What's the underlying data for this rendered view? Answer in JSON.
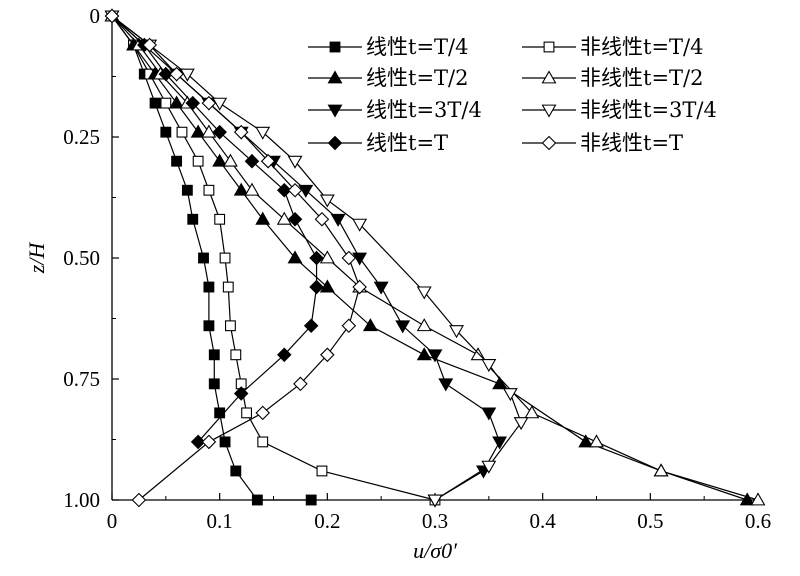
{
  "chart_data": {
    "type": "line",
    "xlabel": "u/σ0′",
    "ylabel": "z/H",
    "xlim": [
      0,
      0.6
    ],
    "ylim": [
      0,
      1.0
    ],
    "y_inverted": true,
    "xticks": [
      "0",
      "0.1",
      "0.2",
      "0.3",
      "0.4",
      "0.5",
      "0.6"
    ],
    "yticks": [
      "0",
      "0.25",
      "0.50",
      "0.75",
      "1.00"
    ],
    "legend_position": "top-right",
    "series": [
      {
        "name": "线性t=T/4",
        "marker": "square",
        "filled": true,
        "x": [
          0,
          0.02,
          0.03,
          0.04,
          0.05,
          0.06,
          0.07,
          0.075,
          0.085,
          0.09,
          0.09,
          0.095,
          0.095,
          0.1,
          0.105,
          0.115,
          0.135,
          0.185
        ],
        "y": [
          0,
          0.06,
          0.12,
          0.18,
          0.24,
          0.3,
          0.36,
          0.42,
          0.5,
          0.56,
          0.64,
          0.7,
          0.76,
          0.82,
          0.88,
          0.94,
          1.0,
          1.0
        ]
      },
      {
        "name": "非线性t=T/4",
        "marker": "square",
        "filled": false,
        "x": [
          0,
          0.02,
          0.035,
          0.05,
          0.065,
          0.08,
          0.09,
          0.1,
          0.105,
          0.108,
          0.11,
          0.115,
          0.12,
          0.125,
          0.14,
          0.195,
          0.3
        ],
        "y": [
          0,
          0.06,
          0.12,
          0.18,
          0.24,
          0.3,
          0.36,
          0.42,
          0.5,
          0.56,
          0.64,
          0.7,
          0.76,
          0.82,
          0.88,
          0.94,
          1.0
        ]
      },
      {
        "name": "线性t=T/2",
        "marker": "triangle-up",
        "filled": true,
        "x": [
          0,
          0.02,
          0.04,
          0.06,
          0.08,
          0.1,
          0.12,
          0.14,
          0.17,
          0.2,
          0.24,
          0.29,
          0.36,
          0.44,
          0.51,
          0.59
        ],
        "y": [
          0,
          0.06,
          0.12,
          0.18,
          0.24,
          0.3,
          0.36,
          0.42,
          0.5,
          0.56,
          0.64,
          0.7,
          0.76,
          0.88,
          0.94,
          1.0
        ]
      },
      {
        "name": "非线性t=T/2",
        "marker": "triangle-up",
        "filled": false,
        "x": [
          0,
          0.025,
          0.045,
          0.07,
          0.09,
          0.11,
          0.13,
          0.16,
          0.2,
          0.23,
          0.29,
          0.34,
          0.39,
          0.45,
          0.51,
          0.6
        ],
        "y": [
          0,
          0.06,
          0.12,
          0.18,
          0.24,
          0.3,
          0.36,
          0.42,
          0.5,
          0.56,
          0.64,
          0.7,
          0.82,
          0.88,
          0.94,
          1.0
        ]
      },
      {
        "name": "线性t=3T/4",
        "marker": "triangle-down",
        "filled": true,
        "x": [
          0,
          0.03,
          0.06,
          0.09,
          0.12,
          0.15,
          0.18,
          0.21,
          0.23,
          0.25,
          0.27,
          0.3,
          0.31,
          0.35,
          0.36,
          0.345,
          0.3
        ],
        "y": [
          0,
          0.06,
          0.12,
          0.18,
          0.24,
          0.3,
          0.36,
          0.42,
          0.5,
          0.56,
          0.64,
          0.7,
          0.76,
          0.82,
          0.88,
          0.94,
          1.0
        ]
      },
      {
        "name": "非线性t=3T/4",
        "marker": "triangle-down",
        "filled": false,
        "x": [
          0,
          0.035,
          0.07,
          0.1,
          0.14,
          0.17,
          0.2,
          0.23,
          0.29,
          0.32,
          0.35,
          0.37,
          0.38,
          0.35,
          0.3
        ],
        "y": [
          0,
          0.06,
          0.12,
          0.18,
          0.24,
          0.3,
          0.38,
          0.43,
          0.57,
          0.65,
          0.72,
          0.78,
          0.84,
          0.93,
          1.0
        ]
      },
      {
        "name": "线性t=T",
        "marker": "diamond",
        "filled": true,
        "x": [
          0,
          0.03,
          0.05,
          0.075,
          0.1,
          0.13,
          0.16,
          0.17,
          0.19,
          0.19,
          0.185,
          0.16,
          0.12,
          0.08
        ],
        "y": [
          0,
          0.06,
          0.12,
          0.18,
          0.24,
          0.3,
          0.36,
          0.42,
          0.5,
          0.56,
          0.64,
          0.7,
          0.78,
          0.88
        ]
      },
      {
        "name": "非线性t=T",
        "marker": "diamond",
        "filled": false,
        "x": [
          0,
          0.035,
          0.06,
          0.09,
          0.12,
          0.145,
          0.17,
          0.195,
          0.22,
          0.23,
          0.22,
          0.2,
          0.175,
          0.14,
          0.09,
          0.025
        ],
        "y": [
          0,
          0.06,
          0.12,
          0.18,
          0.24,
          0.3,
          0.36,
          0.42,
          0.5,
          0.56,
          0.64,
          0.7,
          0.76,
          0.82,
          0.88,
          1.0
        ]
      }
    ]
  }
}
